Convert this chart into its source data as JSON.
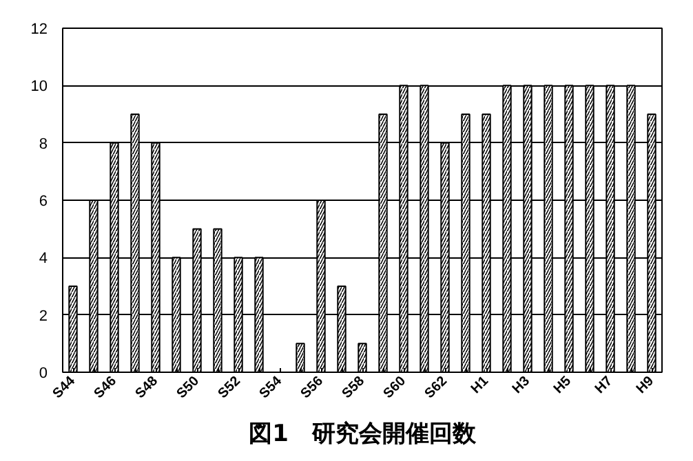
{
  "chart_data": {
    "type": "bar",
    "title": "図1　研究会開催回数",
    "categories": [
      "S44",
      null,
      "S46",
      null,
      "S48",
      null,
      "S50",
      null,
      "S52",
      null,
      "S54",
      null,
      "S56",
      null,
      "S58",
      null,
      "S60",
      null,
      "S62",
      null,
      "H1",
      null,
      "H3",
      null,
      "H5",
      null,
      "H7",
      null,
      "H9"
    ],
    "values": [
      3,
      6,
      8,
      9,
      8,
      4,
      5,
      5,
      4,
      4,
      null,
      1,
      6,
      3,
      1,
      9,
      10,
      10,
      8,
      9,
      9,
      10,
      10,
      10,
      10,
      10,
      10,
      10,
      9
    ],
    "color": "#ffffff",
    "ylim": [
      0,
      12
    ],
    "yticks": [
      0,
      2,
      4,
      6,
      8,
      10,
      12
    ],
    "grid": "y"
  }
}
